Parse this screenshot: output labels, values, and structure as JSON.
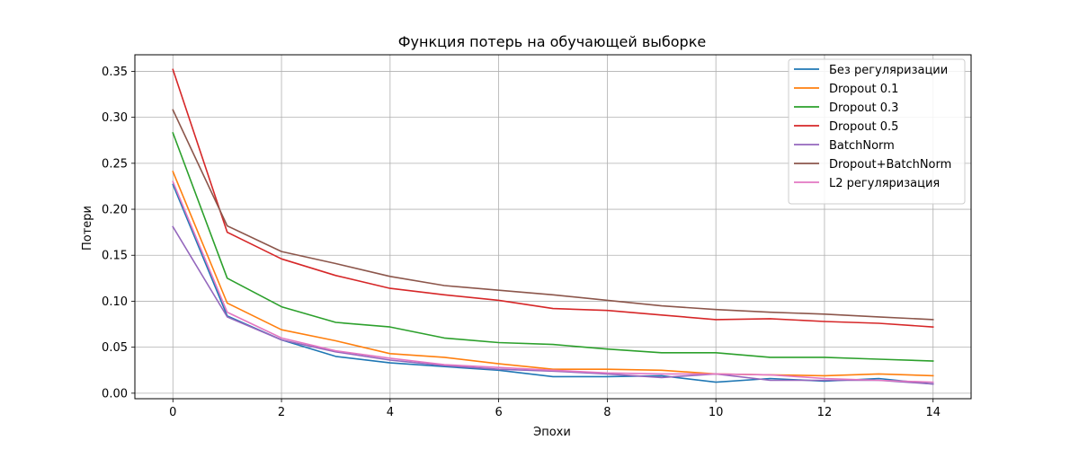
{
  "chart_data": {
    "type": "line",
    "title": "Функция потерь на обучающей выборке",
    "xlabel": "Эпохи",
    "ylabel": "Потери",
    "xlim": [
      -0.7,
      14.7
    ],
    "ylim": [
      -0.006,
      0.368
    ],
    "xticks": [
      "0",
      "2",
      "4",
      "6",
      "8",
      "10",
      "12",
      "14"
    ],
    "yticks": [
      "0.00",
      "0.05",
      "0.10",
      "0.15",
      "0.20",
      "0.25",
      "0.30",
      "0.35"
    ],
    "grid": true,
    "legend_position": "top-right",
    "x": [
      0,
      1,
      2,
      3,
      4,
      5,
      6,
      7,
      8,
      9,
      10,
      11,
      12,
      13,
      14
    ],
    "series": [
      {
        "name": "Без регуляризации",
        "color": "#1f77b4",
        "values": [
          0.227,
          0.084,
          0.058,
          0.04,
          0.033,
          0.029,
          0.025,
          0.018,
          0.018,
          0.019,
          0.012,
          0.016,
          0.013,
          0.016,
          0.01
        ]
      },
      {
        "name": "Dropout 0.1",
        "color": "#ff7f0e",
        "values": [
          0.241,
          0.098,
          0.069,
          0.057,
          0.043,
          0.039,
          0.032,
          0.026,
          0.026,
          0.025,
          0.021,
          0.02,
          0.019,
          0.021,
          0.019
        ]
      },
      {
        "name": "Dropout 0.3",
        "color": "#2ca02c",
        "values": [
          0.283,
          0.125,
          0.094,
          0.077,
          0.072,
          0.06,
          0.055,
          0.053,
          0.048,
          0.044,
          0.044,
          0.039,
          0.039,
          0.037,
          0.035
        ]
      },
      {
        "name": "Dropout 0.5",
        "color": "#d62728",
        "values": [
          0.352,
          0.175,
          0.146,
          0.128,
          0.114,
          0.107,
          0.101,
          0.092,
          0.09,
          0.085,
          0.08,
          0.081,
          0.078,
          0.076,
          0.072
        ]
      },
      {
        "name": "BatchNorm",
        "color": "#9467bd",
        "values": [
          0.181,
          0.083,
          0.058,
          0.045,
          0.036,
          0.03,
          0.026,
          0.024,
          0.021,
          0.017,
          0.021,
          0.014,
          0.014,
          0.014,
          0.01
        ]
      },
      {
        "name": "Dropout+BatchNorm",
        "color": "#8c564b",
        "values": [
          0.308,
          0.182,
          0.154,
          0.141,
          0.127,
          0.117,
          0.112,
          0.107,
          0.101,
          0.095,
          0.091,
          0.088,
          0.086,
          0.083,
          0.08
        ]
      },
      {
        "name": "L2 регуляризация",
        "color": "#e377c2",
        "values": [
          0.23,
          0.088,
          0.06,
          0.046,
          0.038,
          0.031,
          0.028,
          0.025,
          0.022,
          0.021,
          0.021,
          0.02,
          0.016,
          0.014,
          0.012
        ]
      }
    ]
  }
}
